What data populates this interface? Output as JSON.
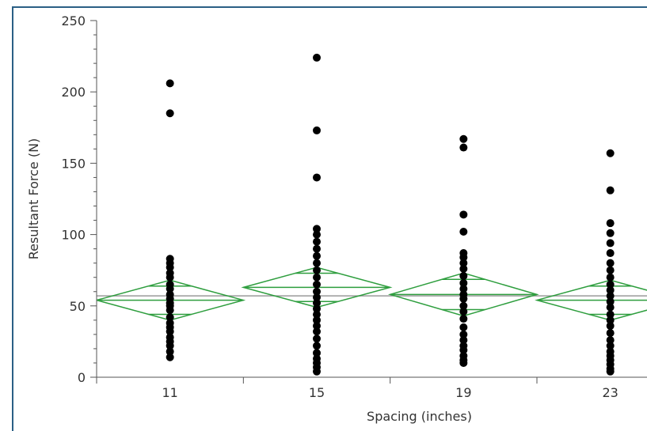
{
  "chart_data": {
    "type": "scatter",
    "xlabel": "Spacing (inches)",
    "ylabel": "Resultant Force (N)",
    "ylim": [
      0,
      250
    ],
    "yticks": [
      0,
      50,
      100,
      150,
      200,
      250
    ],
    "categories": [
      "11",
      "15",
      "19",
      "23"
    ],
    "grand_mean": 57,
    "groups": [
      {
        "category": "11",
        "points": [
          206,
          185,
          83,
          80,
          77,
          73,
          70,
          65,
          62,
          58,
          55,
          52,
          50,
          47,
          42,
          38,
          35,
          32,
          28,
          25,
          22,
          18,
          14
        ],
        "mean": 54,
        "ci_upper": 68,
        "ci_lower": 40
      },
      {
        "category": "15",
        "points": [
          224,
          173,
          140,
          104,
          100,
          95,
          90,
          85,
          80,
          75,
          70,
          65,
          60,
          56,
          52,
          48,
          44,
          40,
          36,
          32,
          27,
          22,
          17,
          13,
          10,
          7,
          4
        ],
        "mean": 63,
        "ci_upper": 77,
        "ci_lower": 49
      },
      {
        "category": "19",
        "points": [
          167,
          161,
          114,
          102,
          87,
          84,
          80,
          76,
          71,
          66,
          62,
          58,
          55,
          50,
          46,
          41,
          35,
          30,
          26,
          22,
          19,
          15,
          12,
          10
        ],
        "mean": 58,
        "ci_upper": 73,
        "ci_lower": 43
      },
      {
        "category": "23",
        "points": [
          157,
          131,
          108,
          101,
          94,
          87,
          80,
          75,
          70,
          65,
          61,
          57,
          53,
          49,
          44,
          40,
          36,
          31,
          26,
          22,
          18,
          15,
          12,
          9,
          6,
          4
        ],
        "mean": 54,
        "ci_upper": 68,
        "ci_lower": 40
      }
    ],
    "colors": {
      "points": "#000000",
      "diamonds": "#2e9e3e",
      "grand_mean_line": "#9a9a9a",
      "axis": "#555555"
    },
    "grid": false
  }
}
